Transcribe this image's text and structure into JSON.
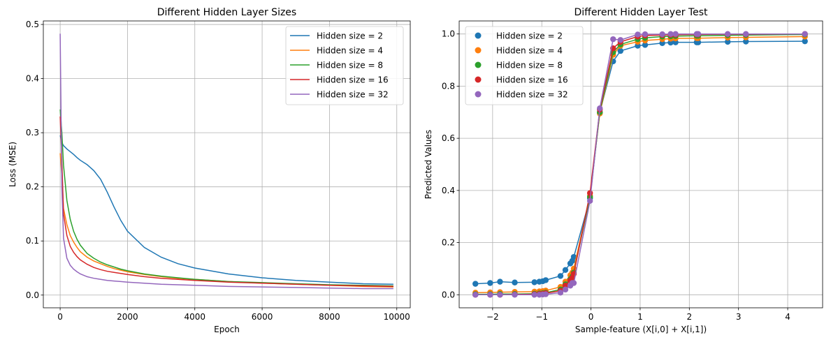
{
  "chart_data": [
    {
      "type": "line",
      "title": "Different Hidden Layer Sizes",
      "xlabel": "Epoch",
      "ylabel": "Loss (MSE)",
      "xlim": [
        -500,
        10400
      ],
      "ylim": [
        -0.0235,
        0.5065
      ],
      "xticks": [
        0,
        2000,
        4000,
        6000,
        8000,
        10000
      ],
      "xtick_labels": [
        "0",
        "2000",
        "4000",
        "6000",
        "8000",
        "10000"
      ],
      "yticks": [
        0.0,
        0.1,
        0.2,
        0.3,
        0.4,
        0.5
      ],
      "ytick_labels": [
        "0.0",
        "0.1",
        "0.2",
        "0.3",
        "0.4",
        "0.5"
      ],
      "grid": true,
      "legend": "top-right",
      "x": [
        0,
        50,
        100,
        200,
        300,
        400,
        500,
        600,
        800,
        1000,
        1200,
        1400,
        1600,
        1800,
        2000,
        2500,
        3000,
        3500,
        4000,
        5000,
        6000,
        7000,
        8000,
        9000,
        9900
      ],
      "series": [
        {
          "name": "Hidden size = 2",
          "color": "#1f77b4",
          "values": [
            0.295,
            0.282,
            0.276,
            0.27,
            0.265,
            0.26,
            0.254,
            0.249,
            0.241,
            0.23,
            0.214,
            0.19,
            0.163,
            0.138,
            0.118,
            0.088,
            0.07,
            0.058,
            0.05,
            0.039,
            0.032,
            0.027,
            0.024,
            0.021,
            0.02
          ]
        },
        {
          "name": "Hidden size = 4",
          "color": "#ff7f0e",
          "values": [
            0.262,
            0.22,
            0.16,
            0.13,
            0.11,
            0.098,
            0.088,
            0.08,
            0.07,
            0.063,
            0.058,
            0.053,
            0.049,
            0.046,
            0.043,
            0.038,
            0.034,
            0.031,
            0.029,
            0.025,
            0.022,
            0.02,
            0.018,
            0.016,
            0.015
          ]
        },
        {
          "name": "Hidden size = 8",
          "color": "#2ca02c",
          "values": [
            0.343,
            0.3,
            0.24,
            0.175,
            0.14,
            0.118,
            0.103,
            0.092,
            0.077,
            0.068,
            0.061,
            0.056,
            0.052,
            0.048,
            0.045,
            0.039,
            0.035,
            0.032,
            0.029,
            0.025,
            0.023,
            0.021,
            0.019,
            0.018,
            0.017
          ]
        },
        {
          "name": "Hidden size = 16",
          "color": "#d62728",
          "values": [
            0.33,
            0.25,
            0.15,
            0.11,
            0.09,
            0.079,
            0.071,
            0.065,
            0.057,
            0.051,
            0.047,
            0.044,
            0.042,
            0.04,
            0.038,
            0.034,
            0.031,
            0.029,
            0.027,
            0.024,
            0.022,
            0.02,
            0.018,
            0.017,
            0.016
          ]
        },
        {
          "name": "Hidden size = 32",
          "color": "#9467bd",
          "values": [
            0.483,
            0.2,
            0.105,
            0.068,
            0.055,
            0.048,
            0.043,
            0.039,
            0.034,
            0.031,
            0.029,
            0.027,
            0.026,
            0.025,
            0.024,
            0.022,
            0.02,
            0.019,
            0.018,
            0.016,
            0.015,
            0.014,
            0.013,
            0.012,
            0.012
          ]
        }
      ]
    },
    {
      "type": "scatter",
      "title": "Different Hidden Layer Test",
      "xlabel": "Sample-feature (X[i,0] + X[i,1])",
      "ylabel": "Predicted Values",
      "xlim": [
        -2.68,
        4.71
      ],
      "ylim": [
        -0.05,
        1.05
      ],
      "xticks": [
        -2,
        -1,
        0,
        1,
        2,
        3,
        4
      ],
      "xtick_labels": [
        "−2",
        "−1",
        "0",
        "1",
        "2",
        "3",
        "4"
      ],
      "yticks": [
        0.0,
        0.2,
        0.4,
        0.6,
        0.8,
        1.0
      ],
      "ytick_labels": [
        "0.0",
        "0.2",
        "0.4",
        "0.6",
        "0.8",
        "1.0"
      ],
      "grid": true,
      "legend": "top-left",
      "markers_and_lines": true,
      "x": [
        -2.35,
        -2.05,
        -1.85,
        -1.55,
        -1.15,
        -1.05,
        -0.98,
        -0.92,
        -0.62,
        -0.52,
        -0.42,
        -0.38,
        -0.35,
        -0.02,
        0.18,
        0.45,
        0.6,
        0.95,
        1.1,
        1.45,
        1.62,
        1.72,
        2.15,
        2.18,
        2.78,
        3.15,
        4.35
      ],
      "series": [
        {
          "name": "Hidden size = 2",
          "color": "#1f77b4",
          "values": [
            0.042,
            0.045,
            0.05,
            0.047,
            0.048,
            0.05,
            0.052,
            0.056,
            0.072,
            0.095,
            0.12,
            0.13,
            0.145,
            0.37,
            0.7,
            0.895,
            0.935,
            0.955,
            0.958,
            0.965,
            0.967,
            0.968,
            0.968,
            0.968,
            0.97,
            0.971,
            0.972
          ]
        },
        {
          "name": "Hidden size = 4",
          "color": "#ff7f0e",
          "values": [
            0.008,
            0.009,
            0.01,
            0.011,
            0.012,
            0.013,
            0.014,
            0.016,
            0.03,
            0.05,
            0.075,
            0.085,
            0.1,
            0.38,
            0.695,
            0.92,
            0.955,
            0.97,
            0.975,
            0.98,
            0.982,
            0.983,
            0.984,
            0.984,
            0.986,
            0.987,
            0.99
          ]
        },
        {
          "name": "Hidden size = 8",
          "color": "#2ca02c",
          "values": [
            0.002,
            0.002,
            0.003,
            0.003,
            0.004,
            0.005,
            0.006,
            0.008,
            0.02,
            0.04,
            0.06,
            0.07,
            0.085,
            0.375,
            0.7,
            0.93,
            0.96,
            0.98,
            0.985,
            0.99,
            0.991,
            0.992,
            0.993,
            0.993,
            0.995,
            0.996,
            0.998
          ]
        },
        {
          "name": "Hidden size = 16",
          "color": "#d62728",
          "values": [
            0.0,
            0.0,
            0.0,
            0.001,
            0.002,
            0.003,
            0.004,
            0.006,
            0.015,
            0.035,
            0.055,
            0.065,
            0.08,
            0.39,
            0.71,
            0.945,
            0.97,
            0.99,
            0.994,
            0.996,
            0.997,
            0.997,
            0.998,
            0.998,
            0.999,
            0.999,
            1.0
          ]
        },
        {
          "name": "Hidden size = 32",
          "color": "#9467bd",
          "values": [
            0.0,
            0.0,
            0.0,
            0.0,
            0.0,
            0.0,
            0.001,
            0.002,
            0.008,
            0.02,
            0.035,
            0.045,
            0.045,
            0.36,
            0.715,
            0.98,
            0.977,
            0.998,
            0.999,
            0.999,
            1.0,
            1.0,
            1.0,
            1.0,
            1.0,
            1.0,
            1.0
          ]
        }
      ]
    }
  ]
}
